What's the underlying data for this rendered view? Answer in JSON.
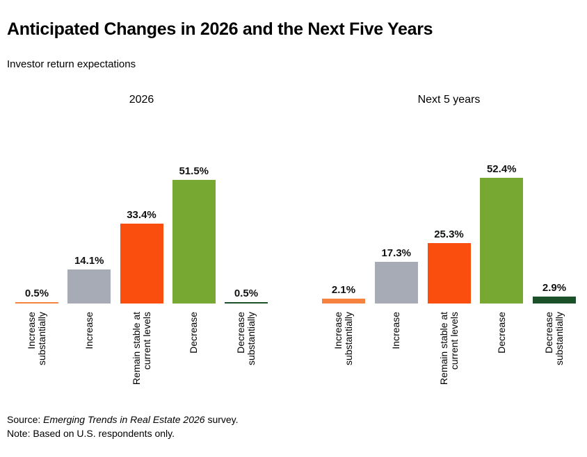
{
  "page": {
    "title": "Anticipated Changes in 2026 and the Next Five Years",
    "subtitle": "Investor return expectations"
  },
  "chart_data": [
    {
      "type": "bar",
      "title": "2026",
      "categories": [
        "Increase substantially",
        "Increase",
        "Remain stable at current levels",
        "Decrease",
        "Decrease substantially"
      ],
      "category_lines": [
        [
          "Increase",
          "substantially"
        ],
        [
          "Increase"
        ],
        [
          "Remain stable at",
          "current levels"
        ],
        [
          "Decrease"
        ],
        [
          "Decrease",
          "substantially"
        ]
      ],
      "values": [
        0.5,
        14.1,
        33.4,
        51.5,
        0.5
      ],
      "value_labels": [
        "0.5%",
        "14.1%",
        "33.4%",
        "51.5%",
        "0.5%"
      ],
      "bar_colors": [
        "#F5823E",
        "#A6ABB5",
        "#F94E0E",
        "#76A832",
        "#1A5129"
      ],
      "ylabel": "",
      "xlabel": "",
      "grid": false,
      "legend": null
    },
    {
      "type": "bar",
      "title": "Next 5 years",
      "categories": [
        "Increase substantially",
        "Increase",
        "Remain stable at current levels",
        "Decrease",
        "Decrease substantially"
      ],
      "category_lines": [
        [
          "Increase",
          "substantially"
        ],
        [
          "Increase"
        ],
        [
          "Remain stable at",
          "current levels"
        ],
        [
          "Decrease"
        ],
        [
          "Decrease",
          "substantially"
        ]
      ],
      "values": [
        2.1,
        17.3,
        25.3,
        52.4,
        2.9
      ],
      "value_labels": [
        "2.1%",
        "17.3%",
        "25.3%",
        "52.4%",
        "2.9%"
      ],
      "bar_colors": [
        "#F5823E",
        "#A6ABB5",
        "#F94E0E",
        "#76A832",
        "#1A5129"
      ],
      "ylabel": "",
      "xlabel": "",
      "grid": false,
      "legend": null
    }
  ],
  "footer": {
    "source_prefix": "Source: ",
    "source_italic": "Emerging Trends in Real Estate 2026",
    "source_suffix": " survey.",
    "note": "Note: Based on U.S. respondents only."
  }
}
